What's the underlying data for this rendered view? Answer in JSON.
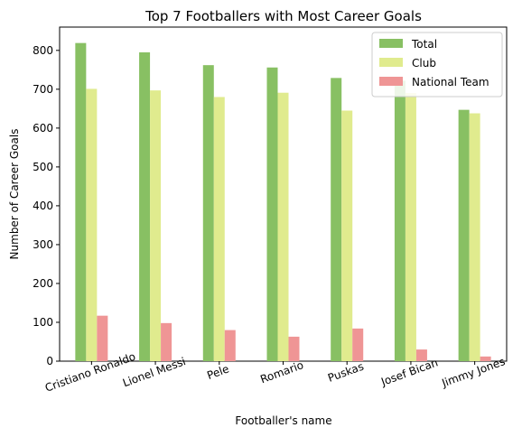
{
  "chart_data": {
    "type": "bar",
    "title": "Top 7 Footballers with Most Career Goals",
    "xlabel": "Footballer's name",
    "ylabel": "Number of Career Goals",
    "categories": [
      "Cristiano Ronaldo",
      "Lionel Messi",
      "Pele",
      "Romario",
      "Puskas",
      "Josef Bican",
      "Jimmy Jones"
    ],
    "series": [
      {
        "name": "Total",
        "color": "#88c063",
        "values": [
          819,
          795,
          762,
          756,
          729,
          722,
          647
        ]
      },
      {
        "name": "Club",
        "color": "#e0eb8e",
        "values": [
          701,
          697,
          680,
          691,
          645,
          690,
          638
        ]
      },
      {
        "name": "National Team",
        "color": "#ef9595",
        "values": [
          117,
          98,
          80,
          63,
          84,
          30,
          12
        ]
      }
    ],
    "ylim": [
      0,
      860
    ],
    "yticks": [
      0,
      100,
      200,
      300,
      400,
      500,
      600,
      700,
      800
    ],
    "legend_position": "top-right",
    "grid": false,
    "xtick_rotation": -20
  }
}
